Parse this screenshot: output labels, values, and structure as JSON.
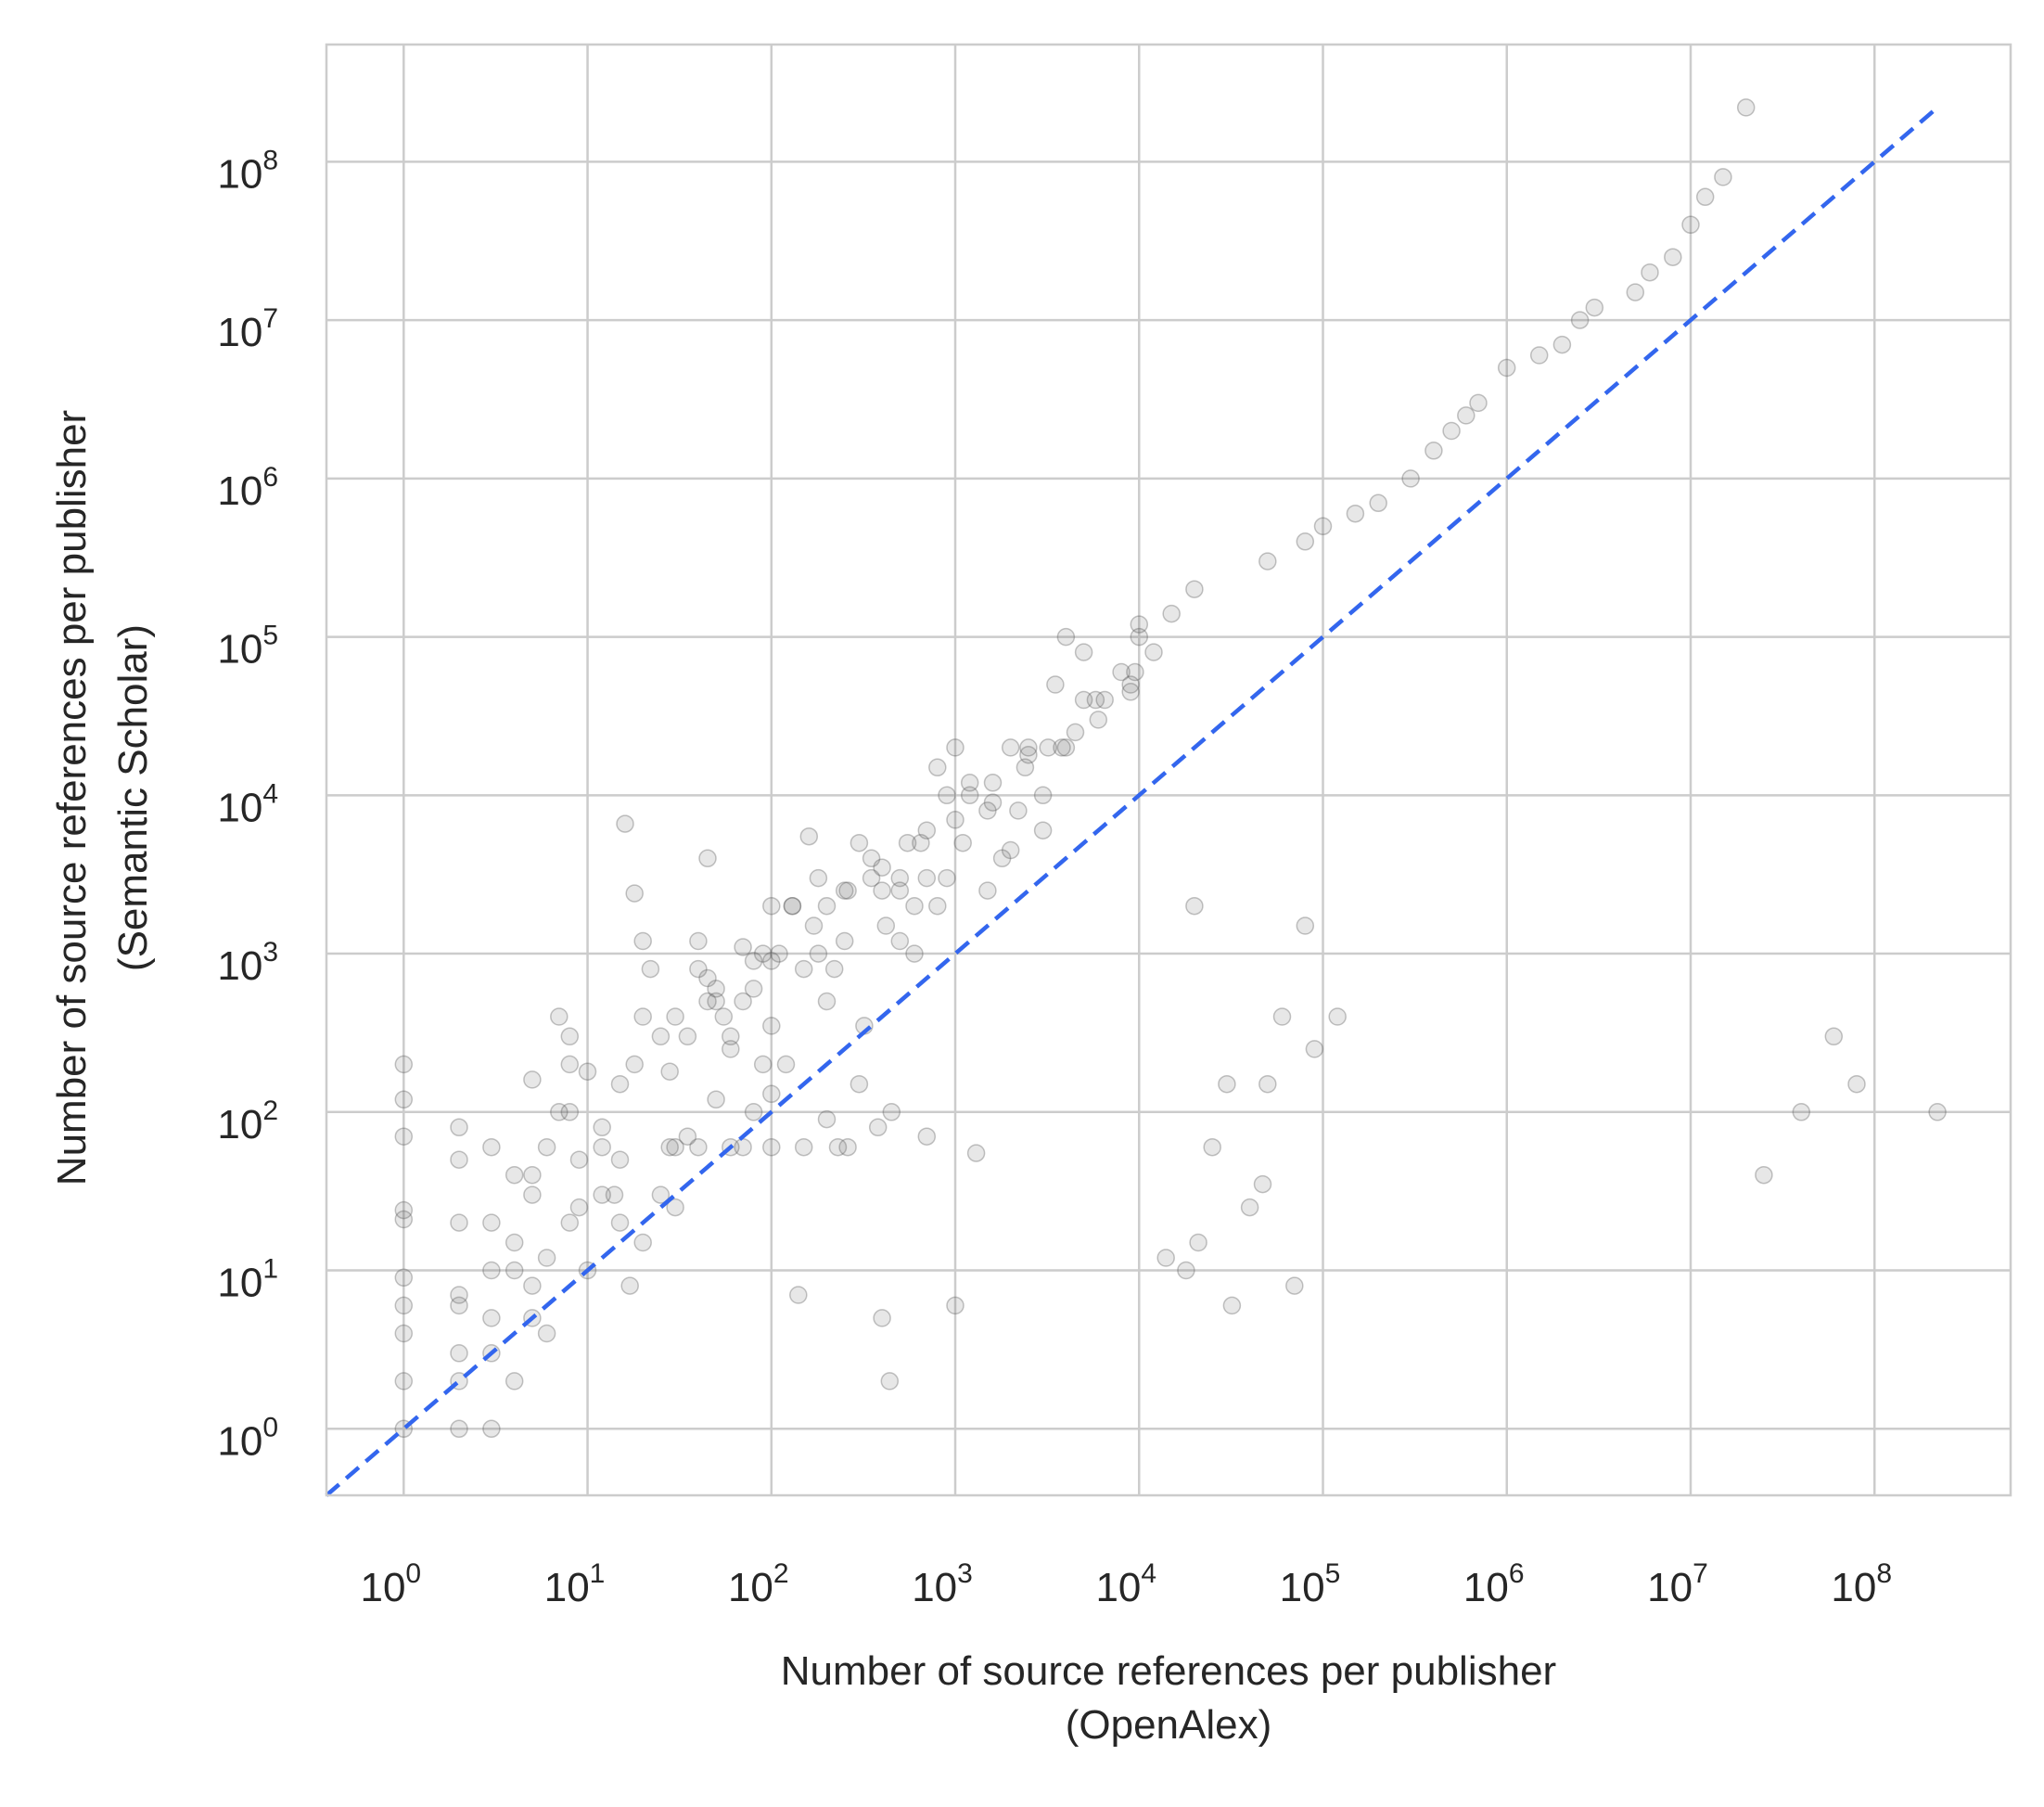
{
  "chart_data": {
    "type": "scatter",
    "xlabel": [
      "Number of source references per publisher",
      "(OpenAlex)"
    ],
    "ylabel": [
      "Number of source references per publisher",
      "(Semantic Scholar)"
    ],
    "x_scale": "log",
    "y_scale": "log",
    "xlim": [
      0.38,
      550000000
    ],
    "ylim": [
      0.38,
      550000000
    ],
    "grid": true,
    "legend": "none",
    "x_ticks": [
      {
        "base": "10",
        "exp": "0",
        "value": 1
      },
      {
        "base": "10",
        "exp": "1",
        "value": 10
      },
      {
        "base": "10",
        "exp": "2",
        "value": 100
      },
      {
        "base": "10",
        "exp": "3",
        "value": 1000
      },
      {
        "base": "10",
        "exp": "4",
        "value": 10000
      },
      {
        "base": "10",
        "exp": "5",
        "value": 100000
      },
      {
        "base": "10",
        "exp": "6",
        "value": 1000000
      },
      {
        "base": "10",
        "exp": "7",
        "value": 10000000
      },
      {
        "base": "10",
        "exp": "8",
        "value": 100000000
      }
    ],
    "y_ticks": [
      {
        "base": "10",
        "exp": "0",
        "value": 1
      },
      {
        "base": "10",
        "exp": "1",
        "value": 10
      },
      {
        "base": "10",
        "exp": "2",
        "value": 100
      },
      {
        "base": "10",
        "exp": "3",
        "value": 1000
      },
      {
        "base": "10",
        "exp": "4",
        "value": 10000
      },
      {
        "base": "10",
        "exp": "5",
        "value": 100000
      },
      {
        "base": "10",
        "exp": "6",
        "value": 1000000
      },
      {
        "base": "10",
        "exp": "7",
        "value": 10000000
      },
      {
        "base": "10",
        "exp": "8",
        "value": 100000000
      }
    ],
    "reference_line": {
      "style": "dashed",
      "color": "#3366ee",
      "x": [
        0.38,
        220000000
      ],
      "y": [
        0.38,
        220000000
      ]
    },
    "marker_color": "#555555",
    "points_x": [
      1,
      1,
      1,
      1,
      1,
      1,
      1,
      1,
      1,
      1,
      2,
      2,
      2,
      2,
      2,
      2,
      2,
      2,
      3,
      3,
      3,
      3,
      3,
      4,
      4,
      4,
      4,
      5,
      5,
      5,
      5,
      5,
      6,
      6,
      6,
      7,
      7,
      8,
      8,
      8,
      9,
      9,
      10,
      10,
      12,
      12,
      14,
      15,
      15,
      16,
      17,
      18,
      20,
      20,
      22,
      25,
      28,
      30,
      30,
      35,
      35,
      40,
      40,
      45,
      45,
      50,
      50,
      55,
      60,
      60,
      70,
      70,
      80,
      80,
      90,
      100,
      100,
      100,
      120,
      130,
      140,
      150,
      160,
      180,
      200,
      220,
      230,
      250,
      260,
      300,
      320,
      350,
      380,
      400,
      420,
      440,
      450,
      500,
      550,
      600,
      700,
      700,
      800,
      900,
      1000,
      1200,
      1300,
      1500,
      2000,
      2500,
      3000,
      3500,
      4000,
      5000,
      10000,
      20000,
      50000,
      80000,
      100000,
      150000,
      200000,
      300000,
      400000,
      500000,
      600000,
      700000,
      1000000,
      1500000,
      2000000,
      2500000,
      3000000,
      5000000,
      6000000,
      8000000,
      10000000,
      12000000,
      15000000,
      20000000,
      25000000,
      40000000,
      60000000,
      80000000,
      220000000,
      20,
      30,
      50,
      80,
      100,
      150,
      200,
      300,
      500,
      800,
      1000,
      1500,
      2000,
      3000,
      5000,
      8000,
      10000,
      15000,
      20000,
      30000,
      50000,
      80000,
      120000,
      100,
      200,
      400,
      600,
      900,
      1200,
      1800,
      2500,
      4000,
      6000,
      9000,
      12000,
      18000,
      25000,
      40000,
      60000,
      90000,
      15,
      25,
      40,
      60,
      90,
      130,
      180,
      250,
      350,
      500,
      700,
      1100,
      1600,
      2200,
      3200,
      4500,
      6500,
      9500,
      14000,
      21000,
      32000,
      47000,
      70000,
      3,
      8,
      12,
      18,
      28,
      45,
      70,
      110,
      170,
      260,
      400,
      650,
      1000,
      1600,
      2400,
      3800,
      5800,
      9000,
      13000,
      20000,
      30000,
      45000,
      65000
    ],
    "points_y": [
      1,
      2,
      4,
      6,
      9,
      21,
      24,
      70,
      120,
      200,
      1,
      2,
      3,
      6,
      7,
      20,
      50,
      80,
      1,
      3,
      5,
      10,
      20,
      2,
      10,
      15,
      40,
      5,
      8,
      30,
      40,
      160,
      4,
      12,
      60,
      100,
      400,
      20,
      100,
      300,
      25,
      50,
      10,
      180,
      30,
      60,
      30,
      20,
      150,
      6600,
      8,
      2400,
      15,
      400,
      800,
      30,
      60,
      60,
      25,
      70,
      300,
      60,
      1200,
      700,
      4000,
      500,
      120,
      400,
      250,
      60,
      60,
      1100,
      100,
      900,
      1000,
      350,
      60,
      130,
      200,
      2000,
      7,
      60,
      5500,
      3000,
      90,
      800,
      60,
      2500,
      60,
      150,
      350,
      4000,
      80,
      5,
      1500,
      2,
      100,
      1200,
      5000,
      1000,
      70,
      3000,
      15000,
      10000,
      6,
      12000,
      55,
      2500,
      4500,
      20000,
      6000,
      50000,
      100000,
      80000,
      120000,
      200000,
      300000,
      400000,
      500000,
      600000,
      700000,
      1000000,
      1500000,
      2000000,
      2500000,
      3000000,
      5000000,
      6000000,
      7000000,
      10000000,
      12000000,
      15000000,
      20000000,
      25000000,
      40000000,
      60000000,
      80000000,
      220000000,
      40,
      100,
      300,
      150,
      100,
      1200,
      400,
      600,
      600,
      2000,
      800,
      500,
      5000,
      3000,
      2000,
      20000,
      8000,
      20000,
      10000,
      40000,
      60000,
      100000,
      140000,
      2000,
      150,
      150,
      1500,
      400,
      900,
      2000,
      3500,
      2000,
      3000,
      10000,
      4000,
      18000,
      20000,
      30000,
      45000,
      80000,
      10,
      60,
      25,
      400,
      250,
      50,
      300,
      800,
      300,
      200,
      2000,
      1000,
      1200,
      3000,
      2500,
      6000,
      5000,
      9000,
      8000,
      20000,
      25000,
      40000,
      60000,
      12,
      15,
      6,
      35,
      8,
      60,
      200,
      80,
      200,
      180,
      500,
      500,
      1000,
      1500,
      2500,
      2500,
      5000,
      7000,
      12000,
      15000,
      20000,
      40000,
      50000
    ]
  }
}
